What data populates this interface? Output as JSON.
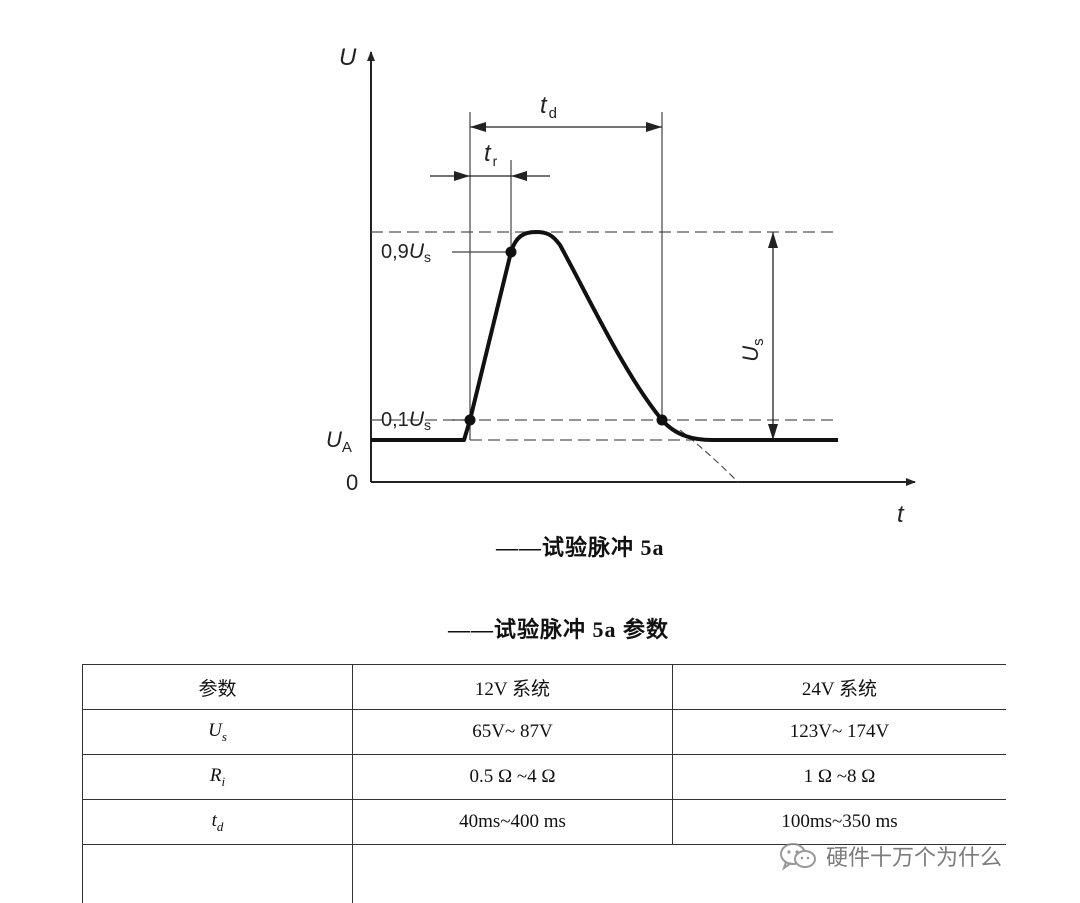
{
  "diagram": {
    "y_axis": "U",
    "x_axis": "t",
    "origin": "0",
    "ua": "U",
    "ua_sub": "A",
    "level_09": "0,9",
    "level_01": "0,1",
    "us_main": "U",
    "us_sub": "s",
    "td_main": "t",
    "td_sub": "d",
    "tr_main": "t",
    "tr_sub": "r",
    "us_span": "U",
    "us_span_sub": "s"
  },
  "figure_caption": "——试验脉冲 5a",
  "table_caption": "——试验脉冲 5a 参数",
  "table": {
    "header": [
      "参数",
      "12V 系统",
      "24V 系统"
    ],
    "rows": [
      {
        "param": "U",
        "sub": "s",
        "v12": "65V~ 87V",
        "v24": "123V~ 174V"
      },
      {
        "param": "R",
        "sub": "i",
        "v12": "0.5 Ω ~4 Ω",
        "v24": "1 Ω ~8 Ω"
      },
      {
        "param": "t",
        "sub": "d",
        "v12": "40ms~400 ms",
        "v24": "100ms~350 ms"
      }
    ]
  },
  "watermark": {
    "icon": "wechat-icon",
    "text": "硬件十万个为什么"
  }
}
